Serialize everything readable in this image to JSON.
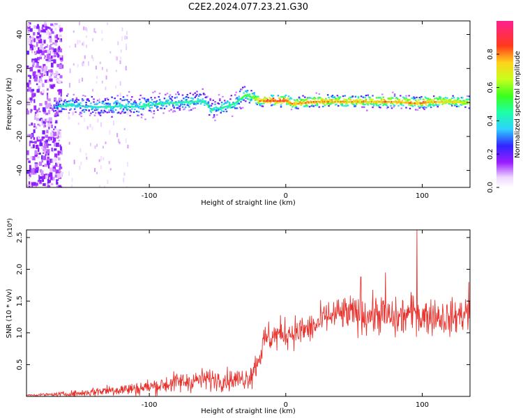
{
  "title": "C2E2.2024.077.23.21.G30",
  "chart_data": [
    {
      "type": "heatmap",
      "xlabel": "Height of straight line (km)",
      "ylabel": "Frequency (Hz)",
      "xlim": [
        -190,
        135
      ],
      "ylim": [
        -50,
        48
      ],
      "x_ticks": [
        -100,
        0,
        100
      ],
      "x_tick_labels": [
        "-100",
        "0",
        "100"
      ],
      "y_ticks": [
        -40,
        -20,
        0,
        20,
        40
      ],
      "y_tick_labels": [
        "-40",
        "-20",
        "0",
        "20",
        "40"
      ],
      "colorbar": {
        "label": "Normalized spectral amplitude",
        "range": [
          0,
          1
        ],
        "ticks": [
          0.0,
          0.2,
          0.4,
          0.6,
          0.8
        ],
        "tick_labels": [
          "0.0",
          "0.2",
          "0.4",
          "0.6",
          "0.8"
        ],
        "colormap": "rainbow (white-violet-blue-cyan-green-yellow-orange-red-magenta)"
      },
      "ridge": [
        {
          "x": -170,
          "freq": -3.0,
          "width": 5,
          "amp": 0.3
        },
        {
          "x": -160,
          "freq": -2.0,
          "width": 6,
          "amp": 0.38
        },
        {
          "x": -150,
          "freq": -2.5,
          "width": 6,
          "amp": 0.36
        },
        {
          "x": -140,
          "freq": -3.0,
          "width": 7,
          "amp": 0.35
        },
        {
          "x": -130,
          "freq": -3.0,
          "width": 7,
          "amp": 0.36
        },
        {
          "x": -120,
          "freq": -2.5,
          "width": 7,
          "amp": 0.37
        },
        {
          "x": -110,
          "freq": -3.0,
          "width": 7,
          "amp": 0.37
        },
        {
          "x": -100,
          "freq": -2.0,
          "width": 7,
          "amp": 0.38
        },
        {
          "x": -90,
          "freq": -1.0,
          "width": 6,
          "amp": 0.38
        },
        {
          "x": -80,
          "freq": -0.5,
          "width": 6,
          "amp": 0.4
        },
        {
          "x": -70,
          "freq": 0.0,
          "width": 6,
          "amp": 0.4
        },
        {
          "x": -60,
          "freq": 0.5,
          "width": 6,
          "amp": 0.38
        },
        {
          "x": -55,
          "freq": -5.0,
          "width": 6,
          "amp": 0.36
        },
        {
          "x": -45,
          "freq": -3.0,
          "width": 6,
          "amp": 0.4
        },
        {
          "x": -38,
          "freq": -1.0,
          "width": 6,
          "amp": 0.42
        },
        {
          "x": -30,
          "freq": 4.0,
          "width": 7,
          "amp": 0.45
        },
        {
          "x": -25,
          "freq": 2.5,
          "width": 5,
          "amp": 0.5
        },
        {
          "x": -20,
          "freq": 0.5,
          "width": 4,
          "amp": 0.7
        },
        {
          "x": -10,
          "freq": 0.5,
          "width": 4,
          "amp": 0.8
        },
        {
          "x": 0,
          "freq": 0.5,
          "width": 4,
          "amp": 0.82
        },
        {
          "x": 5,
          "freq": -1.5,
          "width": 4,
          "amp": 0.72
        },
        {
          "x": 20,
          "freq": 0.0,
          "width": 4,
          "amp": 0.75
        },
        {
          "x": 40,
          "freq": 0.0,
          "width": 4,
          "amp": 0.72
        },
        {
          "x": 60,
          "freq": 0.0,
          "width": 4,
          "amp": 0.7
        },
        {
          "x": 80,
          "freq": 0.0,
          "width": 4,
          "amp": 0.72
        },
        {
          "x": 95,
          "freq": -1.0,
          "width": 4,
          "amp": 0.74
        },
        {
          "x": 110,
          "freq": 0.0,
          "width": 4,
          "amp": 0.7
        },
        {
          "x": 135,
          "freq": -0.5,
          "width": 4,
          "amp": 0.62
        }
      ],
      "noise_region_x": [
        -190,
        -165
      ]
    },
    {
      "type": "line",
      "xlabel": "Height of straight line (km)",
      "ylabel": "SNR (10 * v/v)",
      "y_multiplier_label": "(x10⁴)",
      "xlim": [
        -190,
        135
      ],
      "ylim": [
        0,
        2.62
      ],
      "x_ticks": [
        -100,
        0,
        100
      ],
      "x_tick_labels": [
        "-100",
        "0",
        "100"
      ],
      "y_ticks": [
        0.5,
        1.0,
        1.5,
        2.0,
        2.5
      ],
      "y_tick_labels": [
        "0.5",
        "1.0",
        "1.5",
        "2.0",
        "2.5"
      ],
      "color": "#e8322d",
      "series": [
        {
          "values_x": [
            -190,
            -170,
            -150,
            -130,
            -110,
            -90,
            -80,
            -70,
            -60,
            -50,
            -40,
            -30,
            -25,
            -20,
            -15,
            -10,
            -5,
            0,
            10,
            20,
            30,
            40,
            50,
            60,
            70,
            80,
            90,
            96,
            100,
            110,
            120,
            130,
            135
          ],
          "values_y": [
            0.02,
            0.03,
            0.05,
            0.1,
            0.12,
            0.18,
            0.22,
            0.24,
            0.27,
            0.27,
            0.26,
            0.28,
            0.35,
            0.6,
            0.9,
            0.95,
            0.97,
            1.0,
            1.02,
            1.08,
            1.25,
            1.3,
            1.3,
            1.28,
            1.3,
            1.2,
            1.3,
            1.32,
            1.25,
            1.28,
            1.22,
            1.3,
            1.35
          ],
          "spread": [
            0.01,
            0.02,
            0.04,
            0.07,
            0.08,
            0.1,
            0.12,
            0.12,
            0.12,
            0.12,
            0.12,
            0.12,
            0.15,
            0.18,
            0.18,
            0.18,
            0.18,
            0.18,
            0.18,
            0.18,
            0.18,
            0.2,
            0.2,
            0.22,
            0.22,
            0.22,
            0.22,
            0.22,
            0.22,
            0.2,
            0.2,
            0.2,
            0.2
          ]
        }
      ],
      "peaks": [
        {
          "x": 96,
          "y": 2.62
        },
        {
          "x": 73,
          "y": 1.95
        },
        {
          "x": 55,
          "y": 1.88
        },
        {
          "x": 134,
          "y": 1.8
        }
      ]
    }
  ]
}
